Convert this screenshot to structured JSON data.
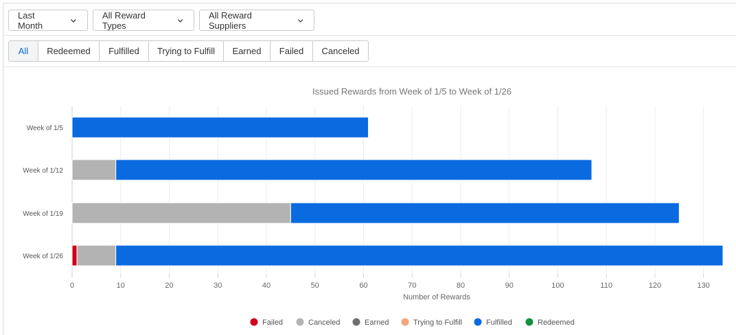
{
  "filters": [
    {
      "label": "Last Month"
    },
    {
      "label": "All Reward Types"
    },
    {
      "label": "All Reward Suppliers"
    }
  ],
  "tabs": [
    {
      "label": "All",
      "active": true
    },
    {
      "label": "Redeemed"
    },
    {
      "label": "Fulfilled"
    },
    {
      "label": "Trying to Fulfill"
    },
    {
      "label": "Earned"
    },
    {
      "label": "Failed"
    },
    {
      "label": "Canceled"
    }
  ],
  "chart_data": {
    "type": "bar",
    "orientation": "horizontal",
    "stacked": true,
    "title": "Issued Rewards from Week of 1/5 to Week of 1/26",
    "xlabel": "Number of Rewards",
    "ylabel": "",
    "xlim": [
      0,
      134
    ],
    "xticks": [
      0,
      10,
      20,
      30,
      40,
      50,
      60,
      70,
      80,
      90,
      100,
      110,
      120,
      130
    ],
    "grid": true,
    "legend_position": "bottom",
    "categories": [
      "Week of 1/5",
      "Week of 1/12",
      "Week of 1/19",
      "Week of 1/26"
    ],
    "series": [
      {
        "name": "Failed",
        "color": "#d0021b",
        "values": [
          0,
          0,
          0,
          1
        ]
      },
      {
        "name": "Canceled",
        "color": "#b3b3b3",
        "values": [
          0,
          9,
          45,
          8
        ]
      },
      {
        "name": "Earned",
        "color": "#6f6f6f",
        "values": [
          0,
          0,
          0,
          0
        ]
      },
      {
        "name": "Trying to Fulfill",
        "color": "#f8a47c",
        "values": [
          0,
          0,
          0,
          0
        ]
      },
      {
        "name": "Fulfilled",
        "color": "#0a6ae0",
        "values": [
          61,
          98,
          80,
          125
        ]
      },
      {
        "name": "Redeemed",
        "color": "#13913c",
        "values": [
          0,
          0,
          0,
          0
        ]
      }
    ]
  }
}
